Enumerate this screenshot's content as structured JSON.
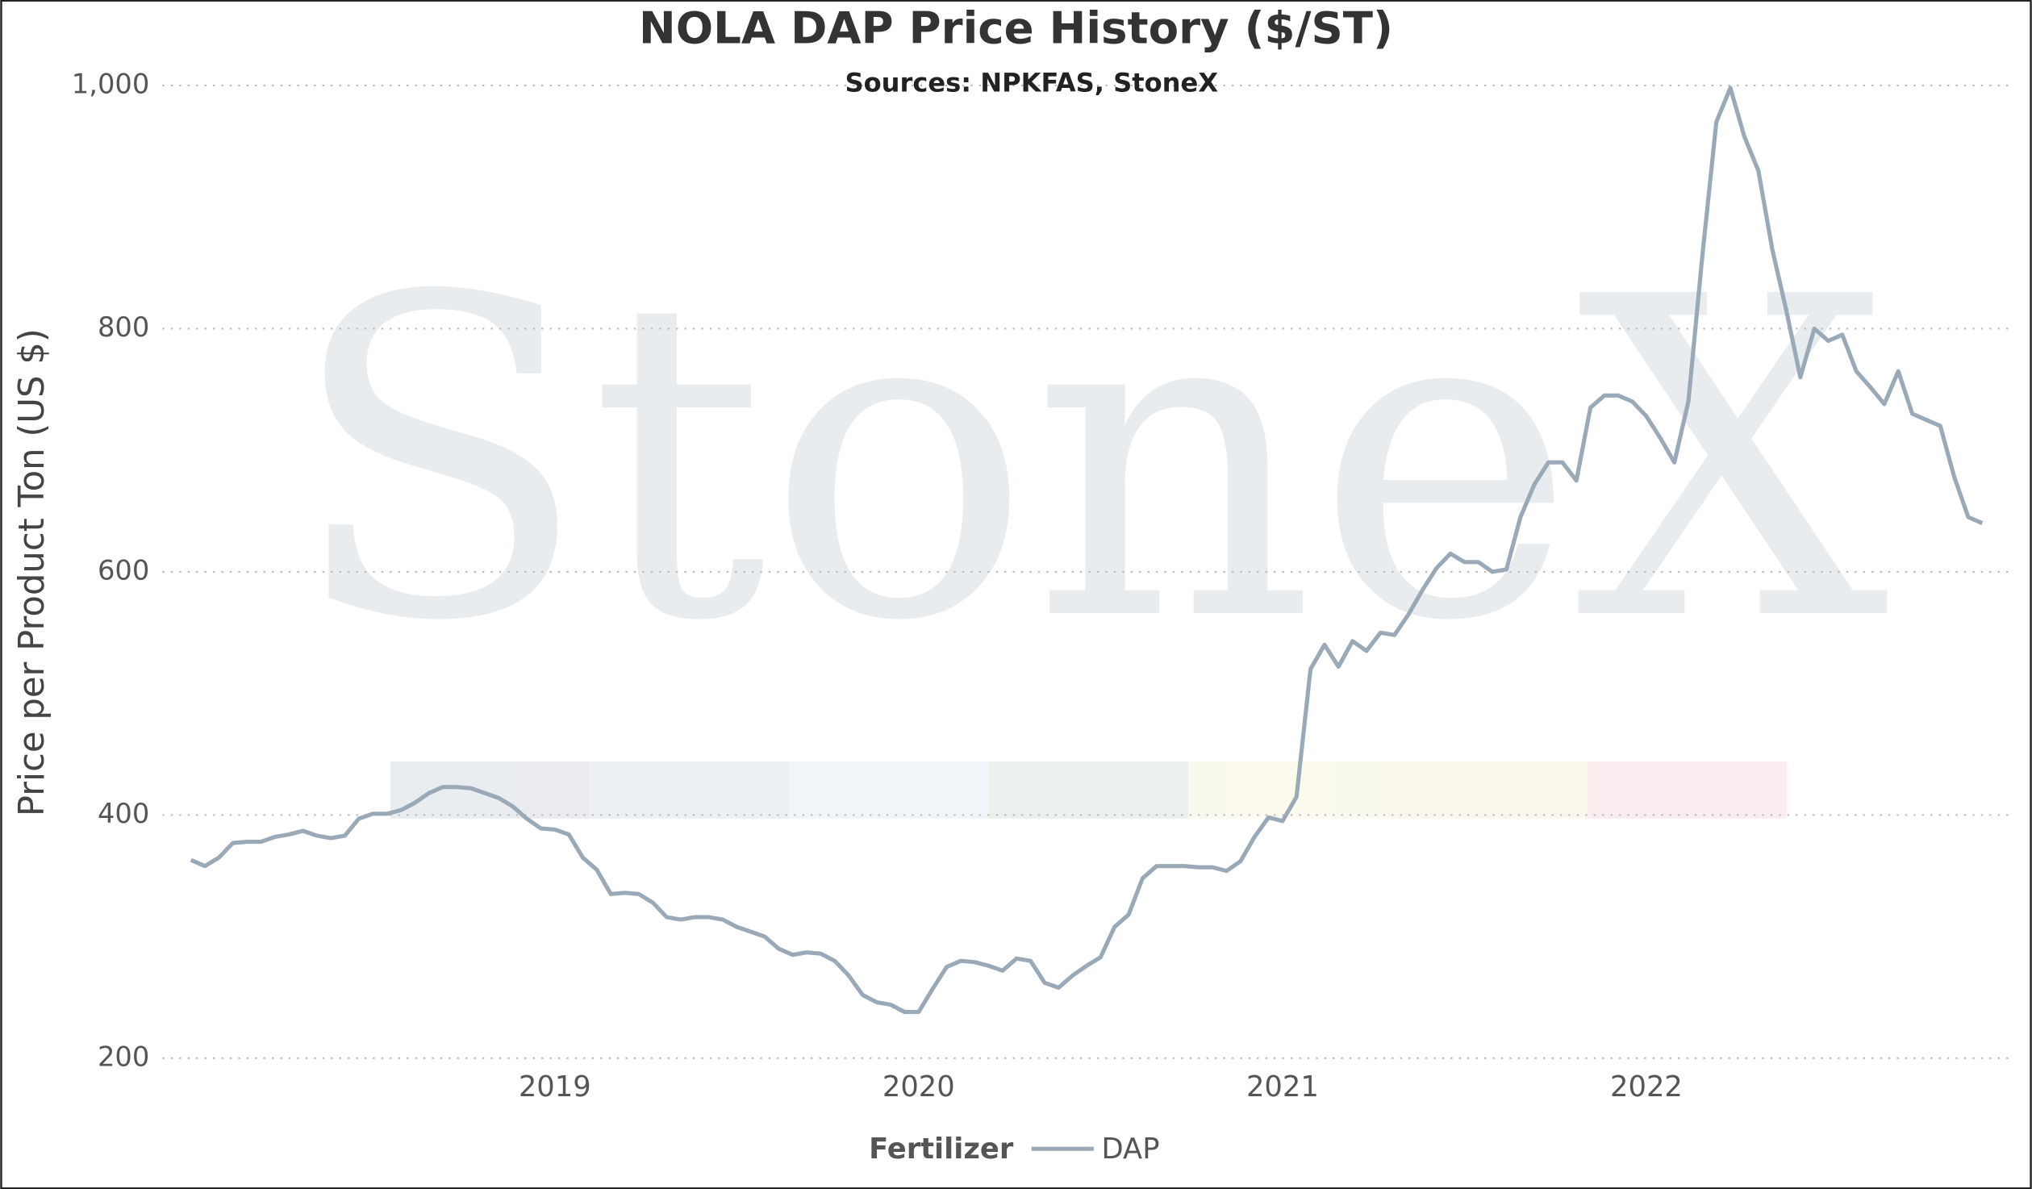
{
  "chart_data": {
    "type": "line",
    "title": "NOLA DAP Price History ($/ST)",
    "subtitle": "Sources: NPKFAS, StoneX",
    "y_label": "Price per Product Ton (US $)",
    "watermark": "StoneX",
    "legend_title": "Fertilizer",
    "legend": "bottom",
    "grid": true,
    "ylim": [
      200,
      1000
    ],
    "yticks": [
      200,
      400,
      600,
      800,
      {
        "value": 1000,
        "label": "1,000"
      }
    ],
    "categories": [
      null,
      null,
      null,
      null,
      null,
      null,
      null,
      null,
      null,
      null,
      null,
      null,
      null,
      null,
      null,
      null,
      null,
      null,
      null,
      null,
      null,
      null,
      null,
      null,
      null,
      null,
      "2019",
      null,
      null,
      null,
      null,
      null,
      null,
      null,
      null,
      null,
      null,
      null,
      null,
      null,
      null,
      null,
      null,
      null,
      null,
      null,
      null,
      null,
      null,
      null,
      null,
      null,
      "2020",
      null,
      null,
      null,
      null,
      null,
      null,
      null,
      null,
      null,
      null,
      null,
      null,
      null,
      null,
      null,
      null,
      null,
      null,
      null,
      null,
      null,
      null,
      null,
      null,
      null,
      "2021",
      null,
      null,
      null,
      null,
      null,
      null,
      null,
      null,
      null,
      null,
      null,
      null,
      null,
      null,
      null,
      null,
      null,
      null,
      null,
      null,
      null,
      null,
      null,
      null,
      null,
      "2022",
      null,
      null,
      null,
      null,
      null,
      null,
      null,
      null,
      null,
      null,
      null,
      null,
      null,
      null,
      null,
      null,
      null,
      null,
      null,
      null,
      null,
      null,
      null,
      null
    ],
    "series": [
      {
        "name": "DAP",
        "color": "#9aa9b7",
        "values": [
          363,
          358,
          365,
          377,
          378,
          378,
          382,
          384,
          387,
          383,
          381,
          383,
          397,
          401,
          401,
          404,
          410,
          418,
          423,
          423,
          422,
          418,
          414,
          407,
          397,
          389,
          388,
          384,
          365,
          355,
          335,
          336,
          335,
          328,
          316,
          314,
          316,
          316,
          314,
          308,
          304,
          300,
          290,
          285,
          287,
          286,
          280,
          268,
          252,
          246,
          244,
          238,
          238,
          257,
          275,
          280,
          279,
          276,
          272,
          282,
          280,
          262,
          258,
          268,
          276,
          283,
          308,
          318,
          348,
          358,
          358,
          358,
          357,
          357,
          354,
          362,
          382,
          398,
          395,
          415,
          520,
          540,
          522,
          543,
          535,
          550,
          548,
          565,
          585,
          603,
          615,
          608,
          608,
          600,
          602,
          645,
          672,
          690,
          690,
          675,
          735,
          745,
          745,
          740,
          728,
          710,
          690,
          740,
          860,
          970,
          998,
          958,
          930,
          865,
          815,
          760,
          800,
          790,
          795,
          765,
          752,
          738,
          765,
          730,
          725,
          720,
          678,
          645,
          640
        ]
      }
    ]
  }
}
